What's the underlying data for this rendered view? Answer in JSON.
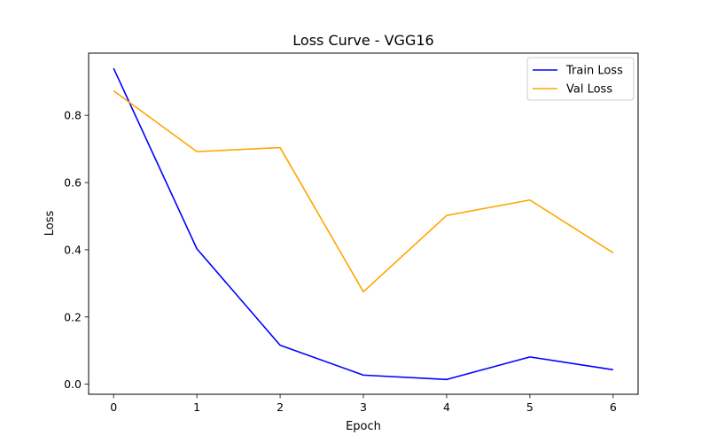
{
  "chart_data": {
    "type": "line",
    "title": "Loss Curve - VGG16",
    "xlabel": "Epoch",
    "ylabel": "Loss",
    "x": [
      0,
      1,
      2,
      3,
      4,
      5,
      6
    ],
    "xticks": [
      0,
      1,
      2,
      3,
      4,
      5,
      6
    ],
    "yticks": [
      0.0,
      0.2,
      0.4,
      0.6,
      0.8
    ],
    "ytick_labels": [
      "0.0",
      "0.2",
      "0.4",
      "0.6",
      "0.8"
    ],
    "xlim": [
      -0.3,
      6.3
    ],
    "ylim": [
      -0.03,
      0.985
    ],
    "grid": false,
    "legend_position": "top-right",
    "series": [
      {
        "name": "Train Loss",
        "color": "#0000ff",
        "values": [
          0.94,
          0.403,
          0.116,
          0.027,
          0.014,
          0.081,
          0.043
        ]
      },
      {
        "name": "Val Loss",
        "color": "#ffa500",
        "values": [
          0.873,
          0.692,
          0.704,
          0.275,
          0.502,
          0.548,
          0.391
        ]
      }
    ]
  }
}
